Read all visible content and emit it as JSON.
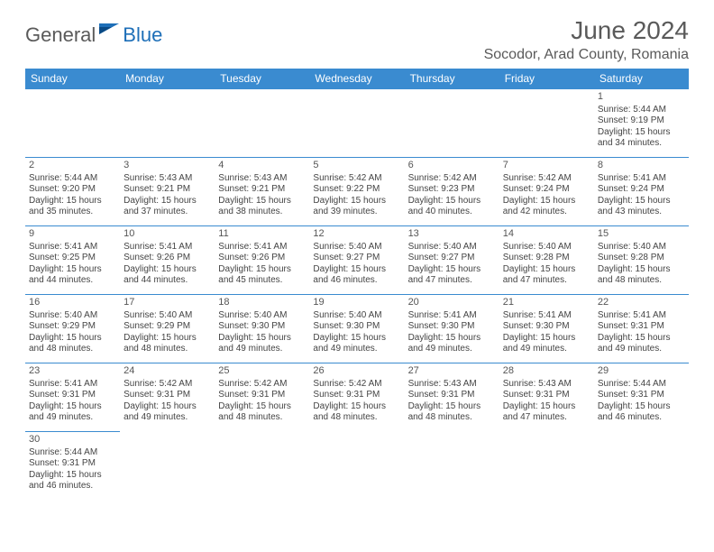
{
  "brand": {
    "part1": "General",
    "part2": "Blue"
  },
  "title": "June 2024",
  "location": "Socodor, Arad County, Romania",
  "colors": {
    "header_bg": "#3a8bd0",
    "header_text": "#ffffff",
    "border": "#3a8bd0",
    "text": "#444444",
    "title": "#5a5a5a",
    "logo_gray": "#5a5a5a",
    "logo_blue": "#1e6fb8"
  },
  "weekdays": [
    "Sunday",
    "Monday",
    "Tuesday",
    "Wednesday",
    "Thursday",
    "Friday",
    "Saturday"
  ],
  "weeks": [
    [
      null,
      null,
      null,
      null,
      null,
      null,
      {
        "day": "1",
        "sunrise": "Sunrise: 5:44 AM",
        "sunset": "Sunset: 9:19 PM",
        "daylight": "Daylight: 15 hours and 34 minutes."
      }
    ],
    [
      {
        "day": "2",
        "sunrise": "Sunrise: 5:44 AM",
        "sunset": "Sunset: 9:20 PM",
        "daylight": "Daylight: 15 hours and 35 minutes."
      },
      {
        "day": "3",
        "sunrise": "Sunrise: 5:43 AM",
        "sunset": "Sunset: 9:21 PM",
        "daylight": "Daylight: 15 hours and 37 minutes."
      },
      {
        "day": "4",
        "sunrise": "Sunrise: 5:43 AM",
        "sunset": "Sunset: 9:21 PM",
        "daylight": "Daylight: 15 hours and 38 minutes."
      },
      {
        "day": "5",
        "sunrise": "Sunrise: 5:42 AM",
        "sunset": "Sunset: 9:22 PM",
        "daylight": "Daylight: 15 hours and 39 minutes."
      },
      {
        "day": "6",
        "sunrise": "Sunrise: 5:42 AM",
        "sunset": "Sunset: 9:23 PM",
        "daylight": "Daylight: 15 hours and 40 minutes."
      },
      {
        "day": "7",
        "sunrise": "Sunrise: 5:42 AM",
        "sunset": "Sunset: 9:24 PM",
        "daylight": "Daylight: 15 hours and 42 minutes."
      },
      {
        "day": "8",
        "sunrise": "Sunrise: 5:41 AM",
        "sunset": "Sunset: 9:24 PM",
        "daylight": "Daylight: 15 hours and 43 minutes."
      }
    ],
    [
      {
        "day": "9",
        "sunrise": "Sunrise: 5:41 AM",
        "sunset": "Sunset: 9:25 PM",
        "daylight": "Daylight: 15 hours and 44 minutes."
      },
      {
        "day": "10",
        "sunrise": "Sunrise: 5:41 AM",
        "sunset": "Sunset: 9:26 PM",
        "daylight": "Daylight: 15 hours and 44 minutes."
      },
      {
        "day": "11",
        "sunrise": "Sunrise: 5:41 AM",
        "sunset": "Sunset: 9:26 PM",
        "daylight": "Daylight: 15 hours and 45 minutes."
      },
      {
        "day": "12",
        "sunrise": "Sunrise: 5:40 AM",
        "sunset": "Sunset: 9:27 PM",
        "daylight": "Daylight: 15 hours and 46 minutes."
      },
      {
        "day": "13",
        "sunrise": "Sunrise: 5:40 AM",
        "sunset": "Sunset: 9:27 PM",
        "daylight": "Daylight: 15 hours and 47 minutes."
      },
      {
        "day": "14",
        "sunrise": "Sunrise: 5:40 AM",
        "sunset": "Sunset: 9:28 PM",
        "daylight": "Daylight: 15 hours and 47 minutes."
      },
      {
        "day": "15",
        "sunrise": "Sunrise: 5:40 AM",
        "sunset": "Sunset: 9:28 PM",
        "daylight": "Daylight: 15 hours and 48 minutes."
      }
    ],
    [
      {
        "day": "16",
        "sunrise": "Sunrise: 5:40 AM",
        "sunset": "Sunset: 9:29 PM",
        "daylight": "Daylight: 15 hours and 48 minutes."
      },
      {
        "day": "17",
        "sunrise": "Sunrise: 5:40 AM",
        "sunset": "Sunset: 9:29 PM",
        "daylight": "Daylight: 15 hours and 48 minutes."
      },
      {
        "day": "18",
        "sunrise": "Sunrise: 5:40 AM",
        "sunset": "Sunset: 9:30 PM",
        "daylight": "Daylight: 15 hours and 49 minutes."
      },
      {
        "day": "19",
        "sunrise": "Sunrise: 5:40 AM",
        "sunset": "Sunset: 9:30 PM",
        "daylight": "Daylight: 15 hours and 49 minutes."
      },
      {
        "day": "20",
        "sunrise": "Sunrise: 5:41 AM",
        "sunset": "Sunset: 9:30 PM",
        "daylight": "Daylight: 15 hours and 49 minutes."
      },
      {
        "day": "21",
        "sunrise": "Sunrise: 5:41 AM",
        "sunset": "Sunset: 9:30 PM",
        "daylight": "Daylight: 15 hours and 49 minutes."
      },
      {
        "day": "22",
        "sunrise": "Sunrise: 5:41 AM",
        "sunset": "Sunset: 9:31 PM",
        "daylight": "Daylight: 15 hours and 49 minutes."
      }
    ],
    [
      {
        "day": "23",
        "sunrise": "Sunrise: 5:41 AM",
        "sunset": "Sunset: 9:31 PM",
        "daylight": "Daylight: 15 hours and 49 minutes."
      },
      {
        "day": "24",
        "sunrise": "Sunrise: 5:42 AM",
        "sunset": "Sunset: 9:31 PM",
        "daylight": "Daylight: 15 hours and 49 minutes."
      },
      {
        "day": "25",
        "sunrise": "Sunrise: 5:42 AM",
        "sunset": "Sunset: 9:31 PM",
        "daylight": "Daylight: 15 hours and 48 minutes."
      },
      {
        "day": "26",
        "sunrise": "Sunrise: 5:42 AM",
        "sunset": "Sunset: 9:31 PM",
        "daylight": "Daylight: 15 hours and 48 minutes."
      },
      {
        "day": "27",
        "sunrise": "Sunrise: 5:43 AM",
        "sunset": "Sunset: 9:31 PM",
        "daylight": "Daylight: 15 hours and 48 minutes."
      },
      {
        "day": "28",
        "sunrise": "Sunrise: 5:43 AM",
        "sunset": "Sunset: 9:31 PM",
        "daylight": "Daylight: 15 hours and 47 minutes."
      },
      {
        "day": "29",
        "sunrise": "Sunrise: 5:44 AM",
        "sunset": "Sunset: 9:31 PM",
        "daylight": "Daylight: 15 hours and 46 minutes."
      }
    ],
    [
      {
        "day": "30",
        "sunrise": "Sunrise: 5:44 AM",
        "sunset": "Sunset: 9:31 PM",
        "daylight": "Daylight: 15 hours and 46 minutes."
      },
      null,
      null,
      null,
      null,
      null,
      null
    ]
  ]
}
